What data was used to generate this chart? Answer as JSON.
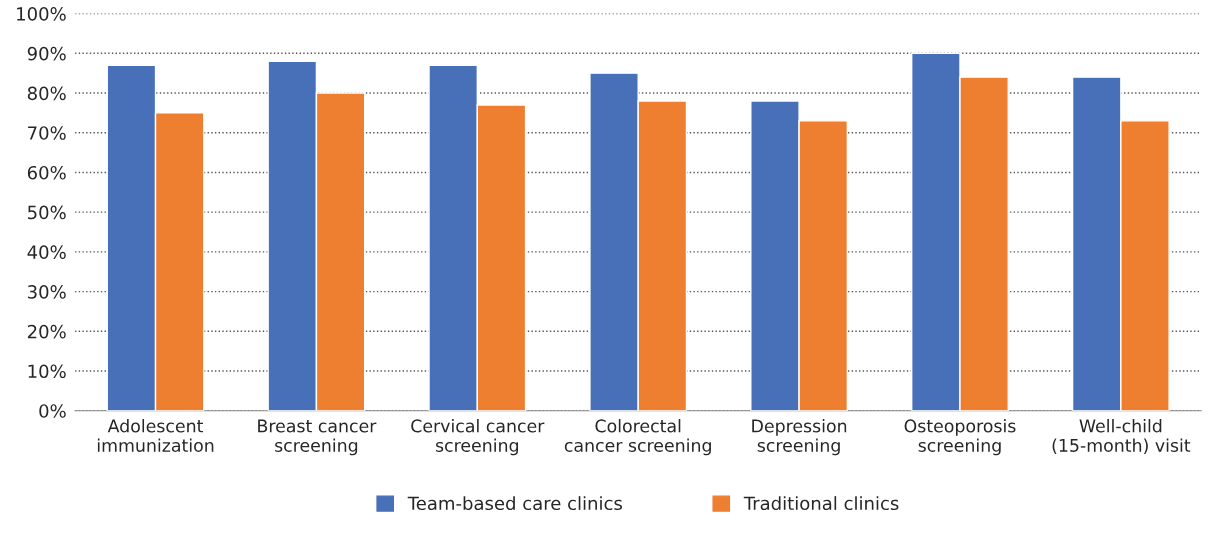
{
  "chart_data": {
    "type": "bar",
    "categories": [
      "Adolescent\nimmunization",
      "Breast cancer\nscreening",
      "Cervical cancer\nscreening",
      "Colorectal\ncancer screening",
      "Depression\nscreening",
      "Osteoporosis\nscreening",
      "Well-child\n(15-month) visit"
    ],
    "series": [
      {
        "name": "Team-based care clinics",
        "color": "#4770b8",
        "values": [
          87,
          88,
          87,
          85,
          78,
          90,
          84
        ]
      },
      {
        "name": "Traditional clinics",
        "color": "#ee7f30",
        "values": [
          75,
          80,
          77,
          78,
          73,
          84,
          73
        ]
      }
    ],
    "ylim": [
      0,
      100
    ],
    "yticks": [
      {
        "value": 0,
        "label": "0%"
      },
      {
        "value": 10,
        "label": "10%"
      },
      {
        "value": 20,
        "label": "20%"
      },
      {
        "value": 30,
        "label": "30%"
      },
      {
        "value": 40,
        "label": "40%"
      },
      {
        "value": 50,
        "label": "50%"
      },
      {
        "value": 60,
        "label": "60%"
      },
      {
        "value": 70,
        "label": "70%"
      },
      {
        "value": 80,
        "label": "80%"
      },
      {
        "value": 90,
        "label": "90%"
      },
      {
        "value": 100,
        "label": "100%"
      }
    ],
    "grid": "y",
    "line_style": "dotted",
    "legend": "bottom"
  }
}
